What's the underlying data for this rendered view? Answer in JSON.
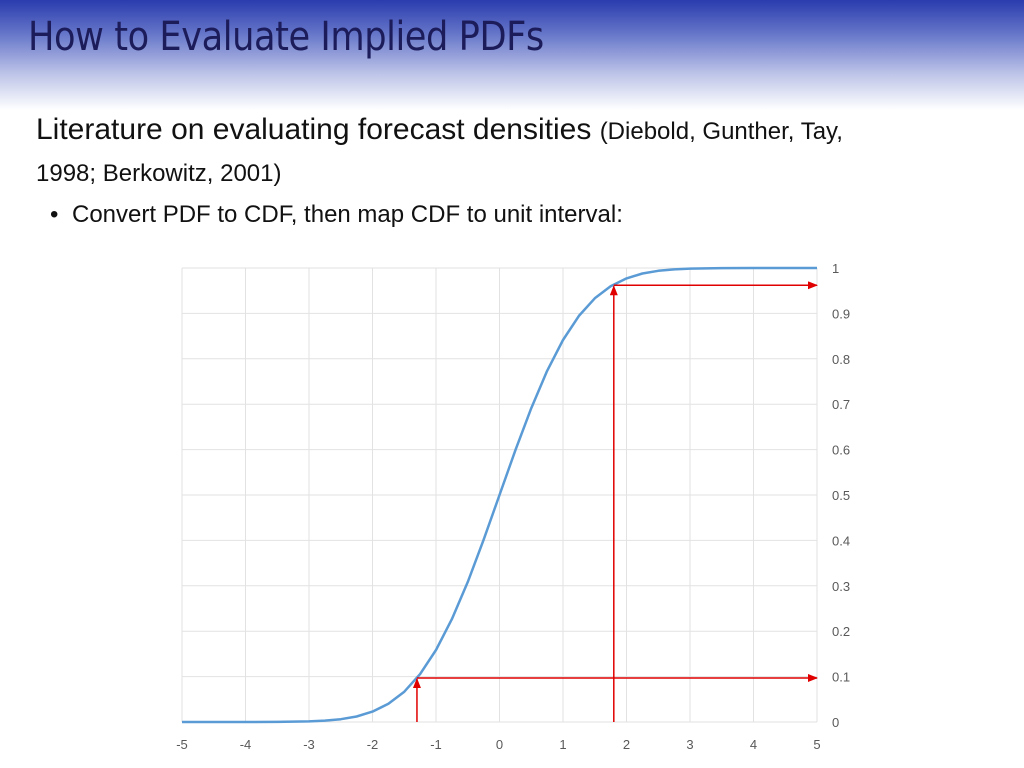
{
  "slide": {
    "title": "How to Evaluate Implied PDFs",
    "lead_text": "Literature on evaluating forecast densities",
    "citation_part1": "(Diebold, Gunther, Tay,",
    "citation_part2": "1998; Berkowitz, 2001)",
    "bullet": "Convert PDF to CDF, then map CDF to unit interval:",
    "accent_color": "#2a3cae",
    "title_color": "#1c1c5a"
  },
  "chart_data": {
    "type": "line",
    "title": "",
    "xlabel": "",
    "ylabel": "",
    "xlim": [
      -5,
      5
    ],
    "ylim": [
      0,
      1
    ],
    "x_ticks": [
      -5,
      -4,
      -3,
      -2,
      -1,
      0,
      1,
      2,
      3,
      4,
      5
    ],
    "y_ticks": [
      0,
      0.1,
      0.2,
      0.3,
      0.4,
      0.5,
      0.6,
      0.7,
      0.8,
      0.9,
      1
    ],
    "y_axis_side": "right",
    "grid": true,
    "series": [
      {
        "color": "#5b9bd5",
        "x": [
          -5,
          -4.5,
          -4,
          -3.5,
          -3,
          -2.75,
          -2.5,
          -2.25,
          -2,
          -1.75,
          -1.5,
          -1.25,
          -1,
          -0.75,
          -0.5,
          -0.25,
          0,
          0.25,
          0.5,
          0.75,
          1,
          1.25,
          1.5,
          1.75,
          2,
          2.25,
          2.5,
          2.75,
          3,
          3.5,
          4,
          4.5,
          5
        ],
        "y": [
          0,
          0,
          0,
          0.0002,
          0.0013,
          0.003,
          0.0062,
          0.0122,
          0.0228,
          0.0401,
          0.0668,
          0.1056,
          0.1587,
          0.2266,
          0.3085,
          0.4013,
          0.5,
          0.5987,
          0.6915,
          0.7734,
          0.8413,
          0.8944,
          0.9332,
          0.9599,
          0.9772,
          0.9878,
          0.9938,
          0.997,
          0.9987,
          0.9998,
          1,
          1,
          1
        ]
      }
    ],
    "annotations": [
      {
        "type": "arrow_path",
        "color": "#e00000",
        "from": [
          -1.3,
          0
        ],
        "corner": [
          -1.3,
          0.097
        ],
        "to": [
          5,
          0.097
        ]
      },
      {
        "type": "arrow_path",
        "color": "#e00000",
        "from": [
          1.8,
          0
        ],
        "corner": [
          1.8,
          0.962
        ],
        "to": [
          5,
          0.962
        ]
      }
    ]
  }
}
